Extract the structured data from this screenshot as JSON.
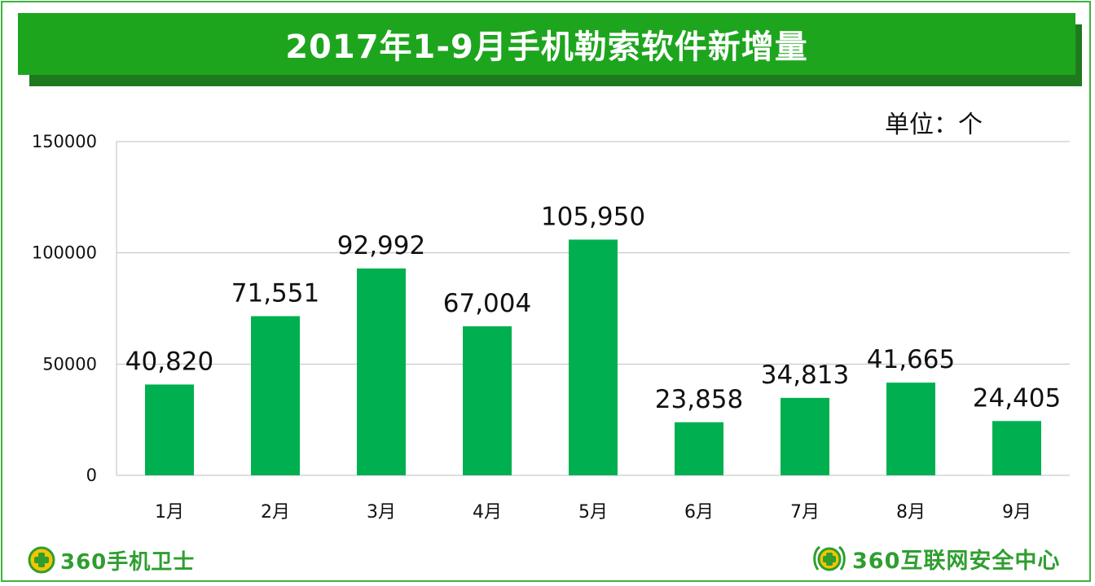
{
  "chart_data": {
    "type": "bar",
    "title": "2017年1-9月手机勒索软件新增量",
    "unit_label": "单位：个",
    "categories": [
      "1月",
      "2月",
      "3月",
      "4月",
      "5月",
      "6月",
      "7月",
      "8月",
      "9月"
    ],
    "values": [
      40820,
      71551,
      92992,
      67004,
      105950,
      23858,
      34813,
      41665,
      24405
    ],
    "data_labels": [
      "40,820",
      "71,551",
      "92,992",
      "67,004",
      "105,950",
      "23,858",
      "34,813",
      "41,665",
      "24,405"
    ],
    "y_ticks": [
      "0",
      "50000",
      "100000",
      "150000"
    ],
    "ylim": [
      0,
      150000
    ],
    "grid": true,
    "bar_color": "#00b050"
  },
  "footer": {
    "left_brand": "360手机卫士",
    "right_brand": "360互联网安全中心"
  },
  "colors": {
    "title_bg": "#1ea51e",
    "title_shadow": "#1f7a1f",
    "frame": "#3cb43c",
    "brand": "#2f9e2f"
  }
}
